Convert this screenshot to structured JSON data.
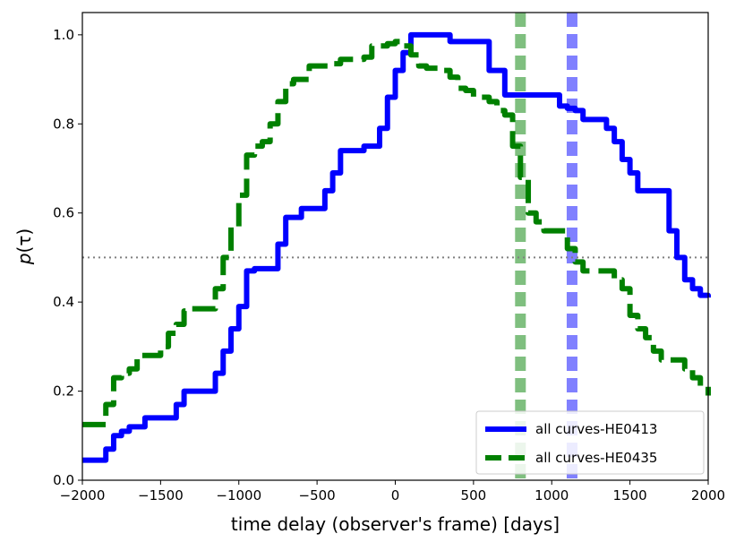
{
  "chart_data": {
    "type": "line",
    "xlabel": "time delay (observer's frame) [days]",
    "ylabel": "p(τ)",
    "ylabel_main": "p",
    "ylabel_arg": "(τ)",
    "xlim": [
      -2000,
      2000
    ],
    "ylim": [
      0.0,
      1.05
    ],
    "x_ticks": [
      -2000,
      -1500,
      -1000,
      -500,
      0,
      500,
      1000,
      1500,
      2000
    ],
    "x_tick_labels": [
      "−2000",
      "−1500",
      "−1000",
      "−500",
      "0",
      "500",
      "1000",
      "1500",
      "2000"
    ],
    "y_ticks": [
      0.0,
      0.2,
      0.4,
      0.6,
      0.8,
      1.0
    ],
    "y_tick_labels": [
      "0.0",
      "0.2",
      "0.4",
      "0.6",
      "0.8",
      "1.0"
    ],
    "grid": false,
    "legend_position": "bottom-right",
    "series": [
      {
        "name": "all curves-HE0413",
        "color": "#0000ff",
        "style": "solid",
        "x": [
          -2000,
          -1900,
          -1850,
          -1800,
          -1750,
          -1700,
          -1600,
          -1550,
          -1400,
          -1350,
          -1300,
          -1200,
          -1150,
          -1100,
          -1050,
          -1000,
          -950,
          -900,
          -800,
          -750,
          -700,
          -650,
          -600,
          -500,
          -450,
          -400,
          -350,
          -300,
          -200,
          -150,
          -100,
          -50,
          0,
          50,
          100,
          150,
          200,
          300,
          350,
          500,
          550,
          600,
          700,
          800,
          900,
          1000,
          1050,
          1100,
          1150,
          1200,
          1250,
          1300,
          1350,
          1400,
          1450,
          1500,
          1550,
          1600,
          1700,
          1750,
          1800,
          1850,
          1900,
          1950,
          2000
        ],
        "values": [
          0.045,
          0.045,
          0.07,
          0.1,
          0.11,
          0.12,
          0.14,
          0.14,
          0.17,
          0.2,
          0.2,
          0.2,
          0.24,
          0.29,
          0.34,
          0.39,
          0.47,
          0.475,
          0.475,
          0.53,
          0.59,
          0.59,
          0.61,
          0.61,
          0.65,
          0.69,
          0.74,
          0.74,
          0.75,
          0.75,
          0.79,
          0.86,
          0.92,
          0.96,
          1.0,
          1.0,
          1.0,
          1.0,
          0.985,
          0.985,
          0.985,
          0.92,
          0.865,
          0.865,
          0.865,
          0.865,
          0.84,
          0.835,
          0.83,
          0.81,
          0.81,
          0.81,
          0.79,
          0.76,
          0.72,
          0.69,
          0.65,
          0.65,
          0.65,
          0.56,
          0.5,
          0.45,
          0.43,
          0.415,
          0.41
        ]
      },
      {
        "name": "all curves-HE0435",
        "color": "#008000",
        "style": "dashed",
        "x": [
          -2000,
          -1900,
          -1850,
          -1800,
          -1750,
          -1700,
          -1650,
          -1600,
          -1550,
          -1500,
          -1450,
          -1400,
          -1350,
          -1300,
          -1250,
          -1200,
          -1150,
          -1100,
          -1050,
          -1000,
          -950,
          -900,
          -850,
          -800,
          -750,
          -700,
          -650,
          -600,
          -550,
          -500,
          -450,
          -400,
          -350,
          -300,
          -250,
          -200,
          -150,
          -100,
          -50,
          0,
          50,
          100,
          150,
          200,
          300,
          350,
          400,
          450,
          500,
          550,
          600,
          650,
          700,
          750,
          800,
          850,
          900,
          950,
          1000,
          1050,
          1100,
          1150,
          1200,
          1300,
          1400,
          1450,
          1500,
          1550,
          1600,
          1650,
          1700,
          1800,
          1850,
          1900,
          1950,
          2000
        ],
        "values": [
          0.125,
          0.125,
          0.17,
          0.23,
          0.24,
          0.25,
          0.28,
          0.28,
          0.28,
          0.3,
          0.33,
          0.35,
          0.38,
          0.385,
          0.385,
          0.385,
          0.43,
          0.5,
          0.57,
          0.64,
          0.73,
          0.75,
          0.76,
          0.8,
          0.85,
          0.89,
          0.9,
          0.9,
          0.93,
          0.93,
          0.93,
          0.935,
          0.945,
          0.945,
          0.945,
          0.95,
          0.975,
          0.975,
          0.98,
          0.985,
          0.975,
          0.955,
          0.93,
          0.925,
          0.92,
          0.905,
          0.88,
          0.875,
          0.86,
          0.86,
          0.85,
          0.83,
          0.82,
          0.75,
          0.68,
          0.6,
          0.58,
          0.56,
          0.56,
          0.56,
          0.52,
          0.49,
          0.47,
          0.47,
          0.45,
          0.43,
          0.37,
          0.34,
          0.32,
          0.29,
          0.27,
          0.27,
          0.25,
          0.23,
          0.21,
          0.19
        ]
      }
    ],
    "hlines": [
      {
        "y": 0.5,
        "color": "#808080",
        "style": "dotted"
      }
    ],
    "vlines": [
      {
        "x": 800,
        "color": "#7fbf7f",
        "style": "dashed"
      },
      {
        "x": 1130,
        "color": "#8080ff",
        "style": "dashed"
      }
    ]
  }
}
